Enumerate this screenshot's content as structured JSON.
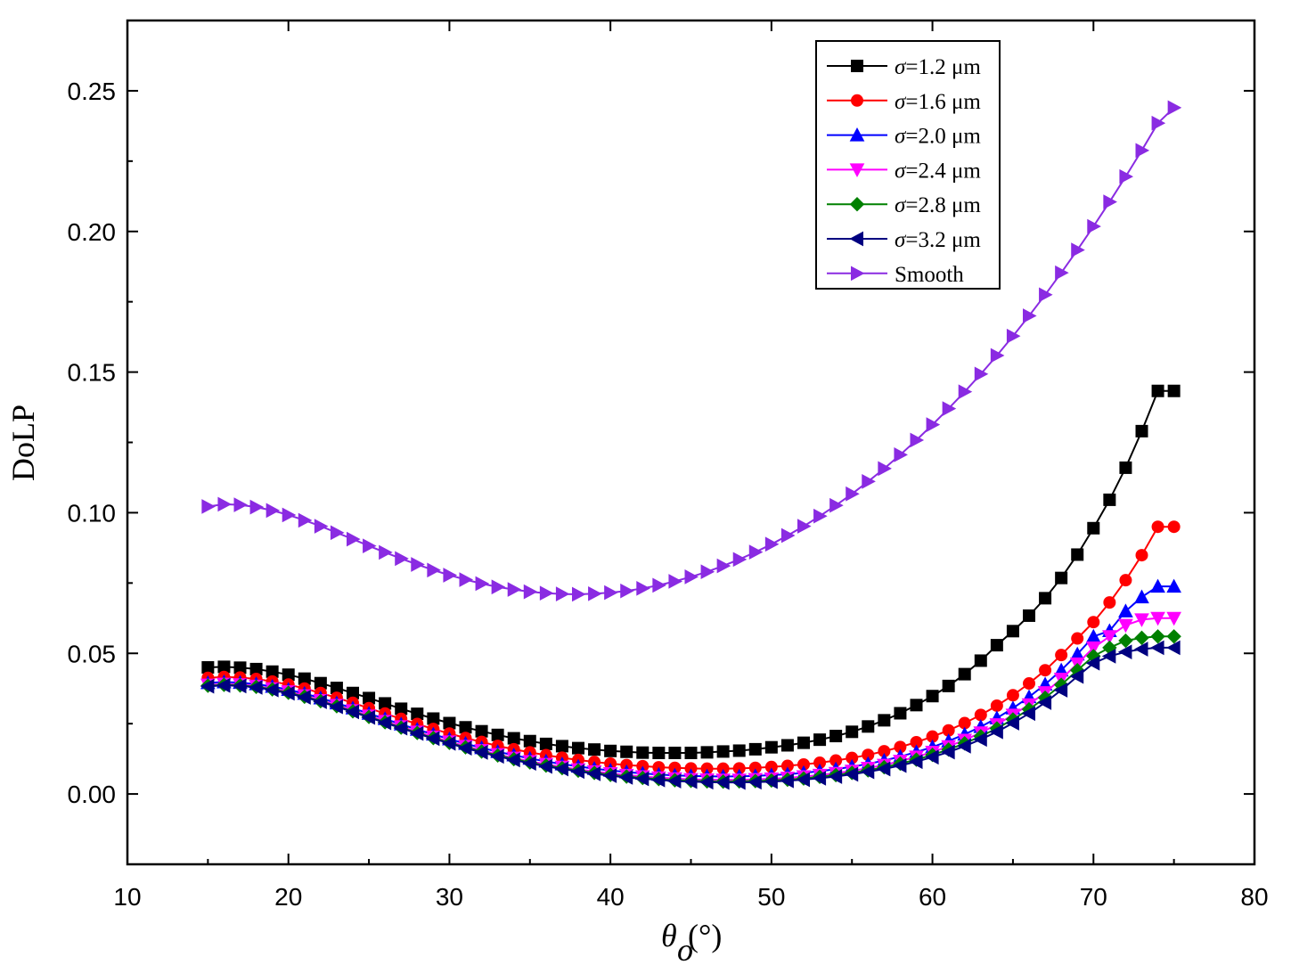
{
  "chart_data": {
    "type": "line",
    "title": "",
    "xlabel": "θo(°)",
    "xlabel_symbol": "θ",
    "xlabel_subscript": "o",
    "xlabel_unit": "(°)",
    "ylabel": "DoLP",
    "xlim": [
      10,
      80
    ],
    "ylim": [
      -0.025,
      0.275
    ],
    "xticks": [
      10,
      20,
      30,
      40,
      50,
      60,
      70,
      80
    ],
    "xtick_labels": [
      "10",
      "20",
      "30",
      "40",
      "50",
      "60",
      "70",
      "80"
    ],
    "yticks": [
      0.0,
      0.05,
      0.1,
      0.15,
      0.2,
      0.25
    ],
    "ytick_labels": [
      "0.00",
      "0.05",
      "0.10",
      "0.15",
      "0.20",
      "0.25"
    ],
    "grid": false,
    "legend_position": "top-right",
    "x": [
      15,
      16,
      17,
      18,
      19,
      20,
      21,
      22,
      23,
      24,
      25,
      26,
      27,
      28,
      29,
      30,
      31,
      32,
      33,
      34,
      35,
      36,
      37,
      38,
      39,
      40,
      41,
      42,
      43,
      44,
      45,
      46,
      47,
      48,
      49,
      50,
      51,
      52,
      53,
      54,
      55,
      56,
      57,
      58,
      59,
      60,
      61,
      62,
      63,
      64,
      65,
      66,
      67,
      68,
      69,
      70,
      71,
      72,
      73,
      74,
      75
    ],
    "series": [
      {
        "name": "σ=1.2 μm",
        "sigma": "σ",
        "label_rest": "=1.2 μm",
        "color": "#000000",
        "marker": "square",
        "values": [
          0.045,
          0.0452,
          0.0449,
          0.0444,
          0.0435,
          0.0424,
          0.041,
          0.0394,
          0.0377,
          0.0359,
          0.0341,
          0.0322,
          0.0303,
          0.0285,
          0.0268,
          0.0252,
          0.0237,
          0.0223,
          0.021,
          0.0198,
          0.0188,
          0.0178,
          0.017,
          0.0163,
          0.0158,
          0.0153,
          0.015,
          0.0147,
          0.0146,
          0.0146,
          0.0146,
          0.0148,
          0.0151,
          0.0154,
          0.0159,
          0.0166,
          0.0173,
          0.0182,
          0.0193,
          0.0206,
          0.0221,
          0.024,
          0.0262,
          0.0287,
          0.0316,
          0.0348,
          0.0384,
          0.0426,
          0.0474,
          0.0529,
          0.0579,
          0.0634,
          0.0696,
          0.0768,
          0.0851,
          0.0945,
          0.1046,
          0.116,
          0.129,
          0.1433,
          0.1433
        ]
      },
      {
        "name": "σ=1.6 μm",
        "sigma": "σ",
        "label_rest": "=1.6 μm",
        "color": "#ff0000",
        "marker": "circle",
        "values": [
          0.0413,
          0.0416,
          0.0414,
          0.0409,
          0.04,
          0.0389,
          0.0375,
          0.0359,
          0.0342,
          0.0324,
          0.0305,
          0.0286,
          0.0267,
          0.0249,
          0.0231,
          0.0215,
          0.0199,
          0.0185,
          0.0171,
          0.0159,
          0.0148,
          0.0138,
          0.0129,
          0.0121,
          0.0114,
          0.0108,
          0.0103,
          0.0099,
          0.0095,
          0.0093,
          0.0091,
          0.009,
          0.009,
          0.0091,
          0.0093,
          0.0096,
          0.01,
          0.0105,
          0.0111,
          0.0119,
          0.0128,
          0.0139,
          0.0152,
          0.0167,
          0.0184,
          0.0204,
          0.0226,
          0.0252,
          0.0281,
          0.0314,
          0.0351,
          0.0393,
          0.044,
          0.0494,
          0.0553,
          0.0611,
          0.0681,
          0.076,
          0.0849,
          0.095,
          0.095
        ]
      },
      {
        "name": "σ=2.0 μm",
        "sigma": "σ",
        "label_rest": "=2.0 μm",
        "color": "#0000ff",
        "marker": "triangle-up",
        "values": [
          0.0395,
          0.0398,
          0.0396,
          0.0391,
          0.0382,
          0.0371,
          0.0357,
          0.0341,
          0.0323,
          0.0305,
          0.0286,
          0.0267,
          0.0248,
          0.0229,
          0.0212,
          0.0195,
          0.0179,
          0.0164,
          0.015,
          0.0138,
          0.0126,
          0.0116,
          0.0106,
          0.0098,
          0.009,
          0.0084,
          0.0078,
          0.0073,
          0.0069,
          0.0066,
          0.0064,
          0.0063,
          0.0062,
          0.0063,
          0.0064,
          0.0067,
          0.007,
          0.0075,
          0.0081,
          0.0088,
          0.0097,
          0.0107,
          0.0119,
          0.0133,
          0.0149,
          0.0167,
          0.0188,
          0.0212,
          0.0239,
          0.027,
          0.0305,
          0.0345,
          0.039,
          0.044,
          0.0497,
          0.056,
          0.058,
          0.065,
          0.07,
          0.0738,
          0.0738
        ]
      },
      {
        "name": "σ=2.4 μm",
        "sigma": "σ",
        "label_rest": "=2.4 μm",
        "color": "#ff00ff",
        "marker": "triangle-down",
        "values": [
          0.0388,
          0.0391,
          0.0389,
          0.0384,
          0.0375,
          0.0364,
          0.035,
          0.0333,
          0.0316,
          0.0297,
          0.0278,
          0.0259,
          0.024,
          0.0221,
          0.0203,
          0.0186,
          0.017,
          0.0155,
          0.0141,
          0.0128,
          0.0116,
          0.0106,
          0.0096,
          0.0087,
          0.008,
          0.0073,
          0.0067,
          0.0062,
          0.0058,
          0.0055,
          0.0052,
          0.0051,
          0.005,
          0.005,
          0.0052,
          0.0054,
          0.0057,
          0.0062,
          0.0067,
          0.0074,
          0.0082,
          0.0092,
          0.0103,
          0.0117,
          0.0132,
          0.0149,
          0.0169,
          0.0192,
          0.0218,
          0.0247,
          0.0281,
          0.0318,
          0.0361,
          0.0409,
          0.0463,
          0.052,
          0.056,
          0.06,
          0.062,
          0.0625,
          0.0625
        ]
      },
      {
        "name": "σ=2.8 μm",
        "sigma": "σ",
        "label_rest": "=2.8 μm",
        "color": "#008000",
        "marker": "diamond",
        "values": [
          0.0385,
          0.0388,
          0.0386,
          0.0381,
          0.0372,
          0.036,
          0.0346,
          0.033,
          0.0312,
          0.0294,
          0.0274,
          0.0255,
          0.0236,
          0.0217,
          0.0199,
          0.0182,
          0.0166,
          0.0151,
          0.0137,
          0.0124,
          0.0112,
          0.0101,
          0.0092,
          0.0083,
          0.0075,
          0.0068,
          0.0062,
          0.0057,
          0.0053,
          0.0049,
          0.0047,
          0.0045,
          0.0044,
          0.0045,
          0.0046,
          0.0048,
          0.0051,
          0.0055,
          0.0061,
          0.0067,
          0.0075,
          0.0084,
          0.0095,
          0.0108,
          0.0122,
          0.0139,
          0.0158,
          0.018,
          0.0205,
          0.0233,
          0.0265,
          0.0301,
          0.0342,
          0.0388,
          0.044,
          0.049,
          0.052,
          0.0545,
          0.0555,
          0.056,
          0.056
        ]
      },
      {
        "name": "σ=3.2 μm",
        "sigma": "σ",
        "label_rest": "=3.2 μm",
        "color": "#000080",
        "marker": "triangle-left",
        "values": [
          0.0383,
          0.0386,
          0.0384,
          0.0379,
          0.037,
          0.0358,
          0.0344,
          0.0328,
          0.031,
          0.0292,
          0.0272,
          0.0253,
          0.0234,
          0.0215,
          0.0197,
          0.018,
          0.0163,
          0.0148,
          0.0134,
          0.0121,
          0.0109,
          0.0098,
          0.0089,
          0.008,
          0.0072,
          0.0065,
          0.0059,
          0.0054,
          0.005,
          0.0046,
          0.0044,
          0.0042,
          0.0041,
          0.0041,
          0.0042,
          0.0044,
          0.0047,
          0.0051,
          0.0056,
          0.0062,
          0.007,
          0.0079,
          0.0089,
          0.0101,
          0.0115,
          0.0131,
          0.0149,
          0.017,
          0.0194,
          0.0221,
          0.0252,
          0.0286,
          0.0325,
          0.0369,
          0.0418,
          0.0465,
          0.049,
          0.0505,
          0.0515,
          0.052,
          0.052
        ]
      },
      {
        "name": "Smooth",
        "sigma": "",
        "label_rest": "Smooth",
        "color": "#8a2be2",
        "marker": "triangle-right",
        "values": [
          0.1022,
          0.103,
          0.1028,
          0.102,
          0.1008,
          0.0992,
          0.0973,
          0.0952,
          0.0929,
          0.0906,
          0.0882,
          0.0859,
          0.0837,
          0.0816,
          0.0796,
          0.0778,
          0.0762,
          0.0748,
          0.0736,
          0.0727,
          0.0719,
          0.0714,
          0.0711,
          0.071,
          0.0712,
          0.0716,
          0.0722,
          0.0731,
          0.0742,
          0.0756,
          0.0772,
          0.079,
          0.0811,
          0.0834,
          0.086,
          0.0888,
          0.0919,
          0.0952,
          0.0988,
          0.1026,
          0.1067,
          0.1111,
          0.1157,
          0.1206,
          0.1258,
          0.1313,
          0.137,
          0.143,
          0.1493,
          0.1559,
          0.1628,
          0.17,
          0.1775,
          0.1853,
          0.1934,
          0.2018,
          0.2105,
          0.2195,
          0.2288,
          0.2385,
          0.244
        ]
      }
    ]
  }
}
